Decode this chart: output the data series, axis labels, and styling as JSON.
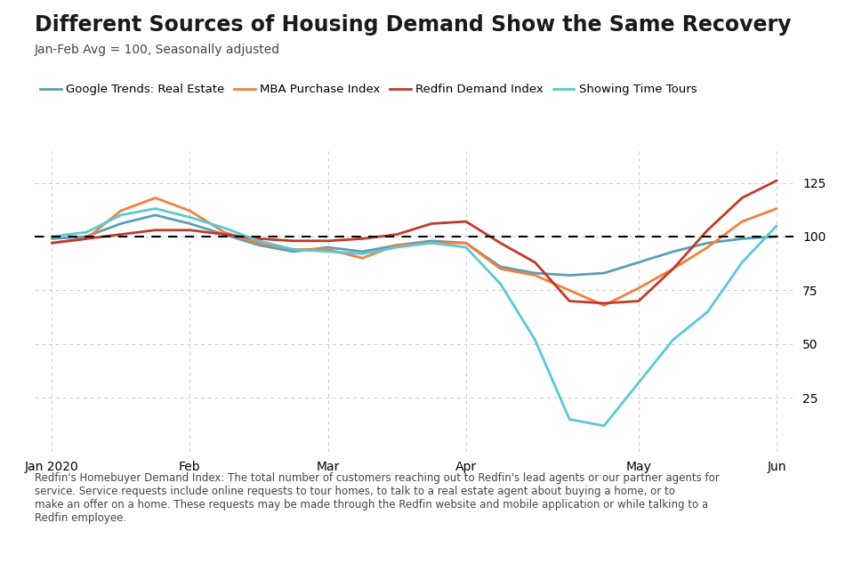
{
  "title": "Different Sources of Housing Demand Show the Same Recovery",
  "subtitle": "Jan-Feb Avg = 100, Seasonally adjusted",
  "footnote": "Redfin's Homebuyer Demand Index: The total number of customers reaching out to Redfin's lead agents or our partner agents for\nservice. Service requests include online requests to tour homes, to talk to a real estate agent about buying a home, or to\nmake an offer on a home. These requests may be made through the Redfin website and mobile application or while talking to a\nRedfin employee.",
  "x_labels": [
    "Jan 2020",
    "Feb",
    "Mar",
    "Apr",
    "May",
    "Jun"
  ],
  "x_tick_positions": [
    0,
    4,
    8,
    12,
    17,
    21
  ],
  "n_points": 22,
  "ylim": [
    0,
    140
  ],
  "yticks": [
    25,
    50,
    75,
    100,
    125
  ],
  "dashed_line_y": 100,
  "series": {
    "google_trends": {
      "label": "Google Trends: Real Estate",
      "color": "#5b9eb5",
      "linewidth": 2.0,
      "values": [
        99,
        100,
        106,
        110,
        106,
        101,
        96,
        93,
        95,
        93,
        96,
        98,
        97,
        86,
        83,
        82,
        83,
        88,
        93,
        97,
        99,
        100
      ]
    },
    "mba": {
      "label": "MBA Purchase Index",
      "color": "#f0803c",
      "linewidth": 2.0,
      "values": [
        97,
        99,
        112,
        118,
        112,
        102,
        97,
        94,
        94,
        90,
        96,
        97,
        97,
        85,
        82,
        75,
        68,
        76,
        85,
        95,
        107,
        113
      ]
    },
    "redfin": {
      "label": "Redfin Demand Index",
      "color": "#c0392b",
      "linewidth": 2.0,
      "values": [
        97,
        99,
        101,
        103,
        103,
        101,
        99,
        98,
        98,
        99,
        101,
        106,
        107,
        97,
        88,
        70,
        69,
        70,
        85,
        103,
        118,
        126
      ]
    },
    "showing_time": {
      "label": "Showing Time Tours",
      "color": "#5bc8d4",
      "linewidth": 2.0,
      "values": [
        100,
        102,
        110,
        113,
        109,
        104,
        98,
        94,
        93,
        92,
        95,
        97,
        95,
        78,
        52,
        15,
        12,
        32,
        52,
        65,
        88,
        105
      ]
    }
  },
  "background_color": "#ffffff",
  "grid_color": "#cccccc",
  "title_fontsize": 17,
  "subtitle_fontsize": 10,
  "tick_fontsize": 10,
  "footnote_fontsize": 8.5
}
